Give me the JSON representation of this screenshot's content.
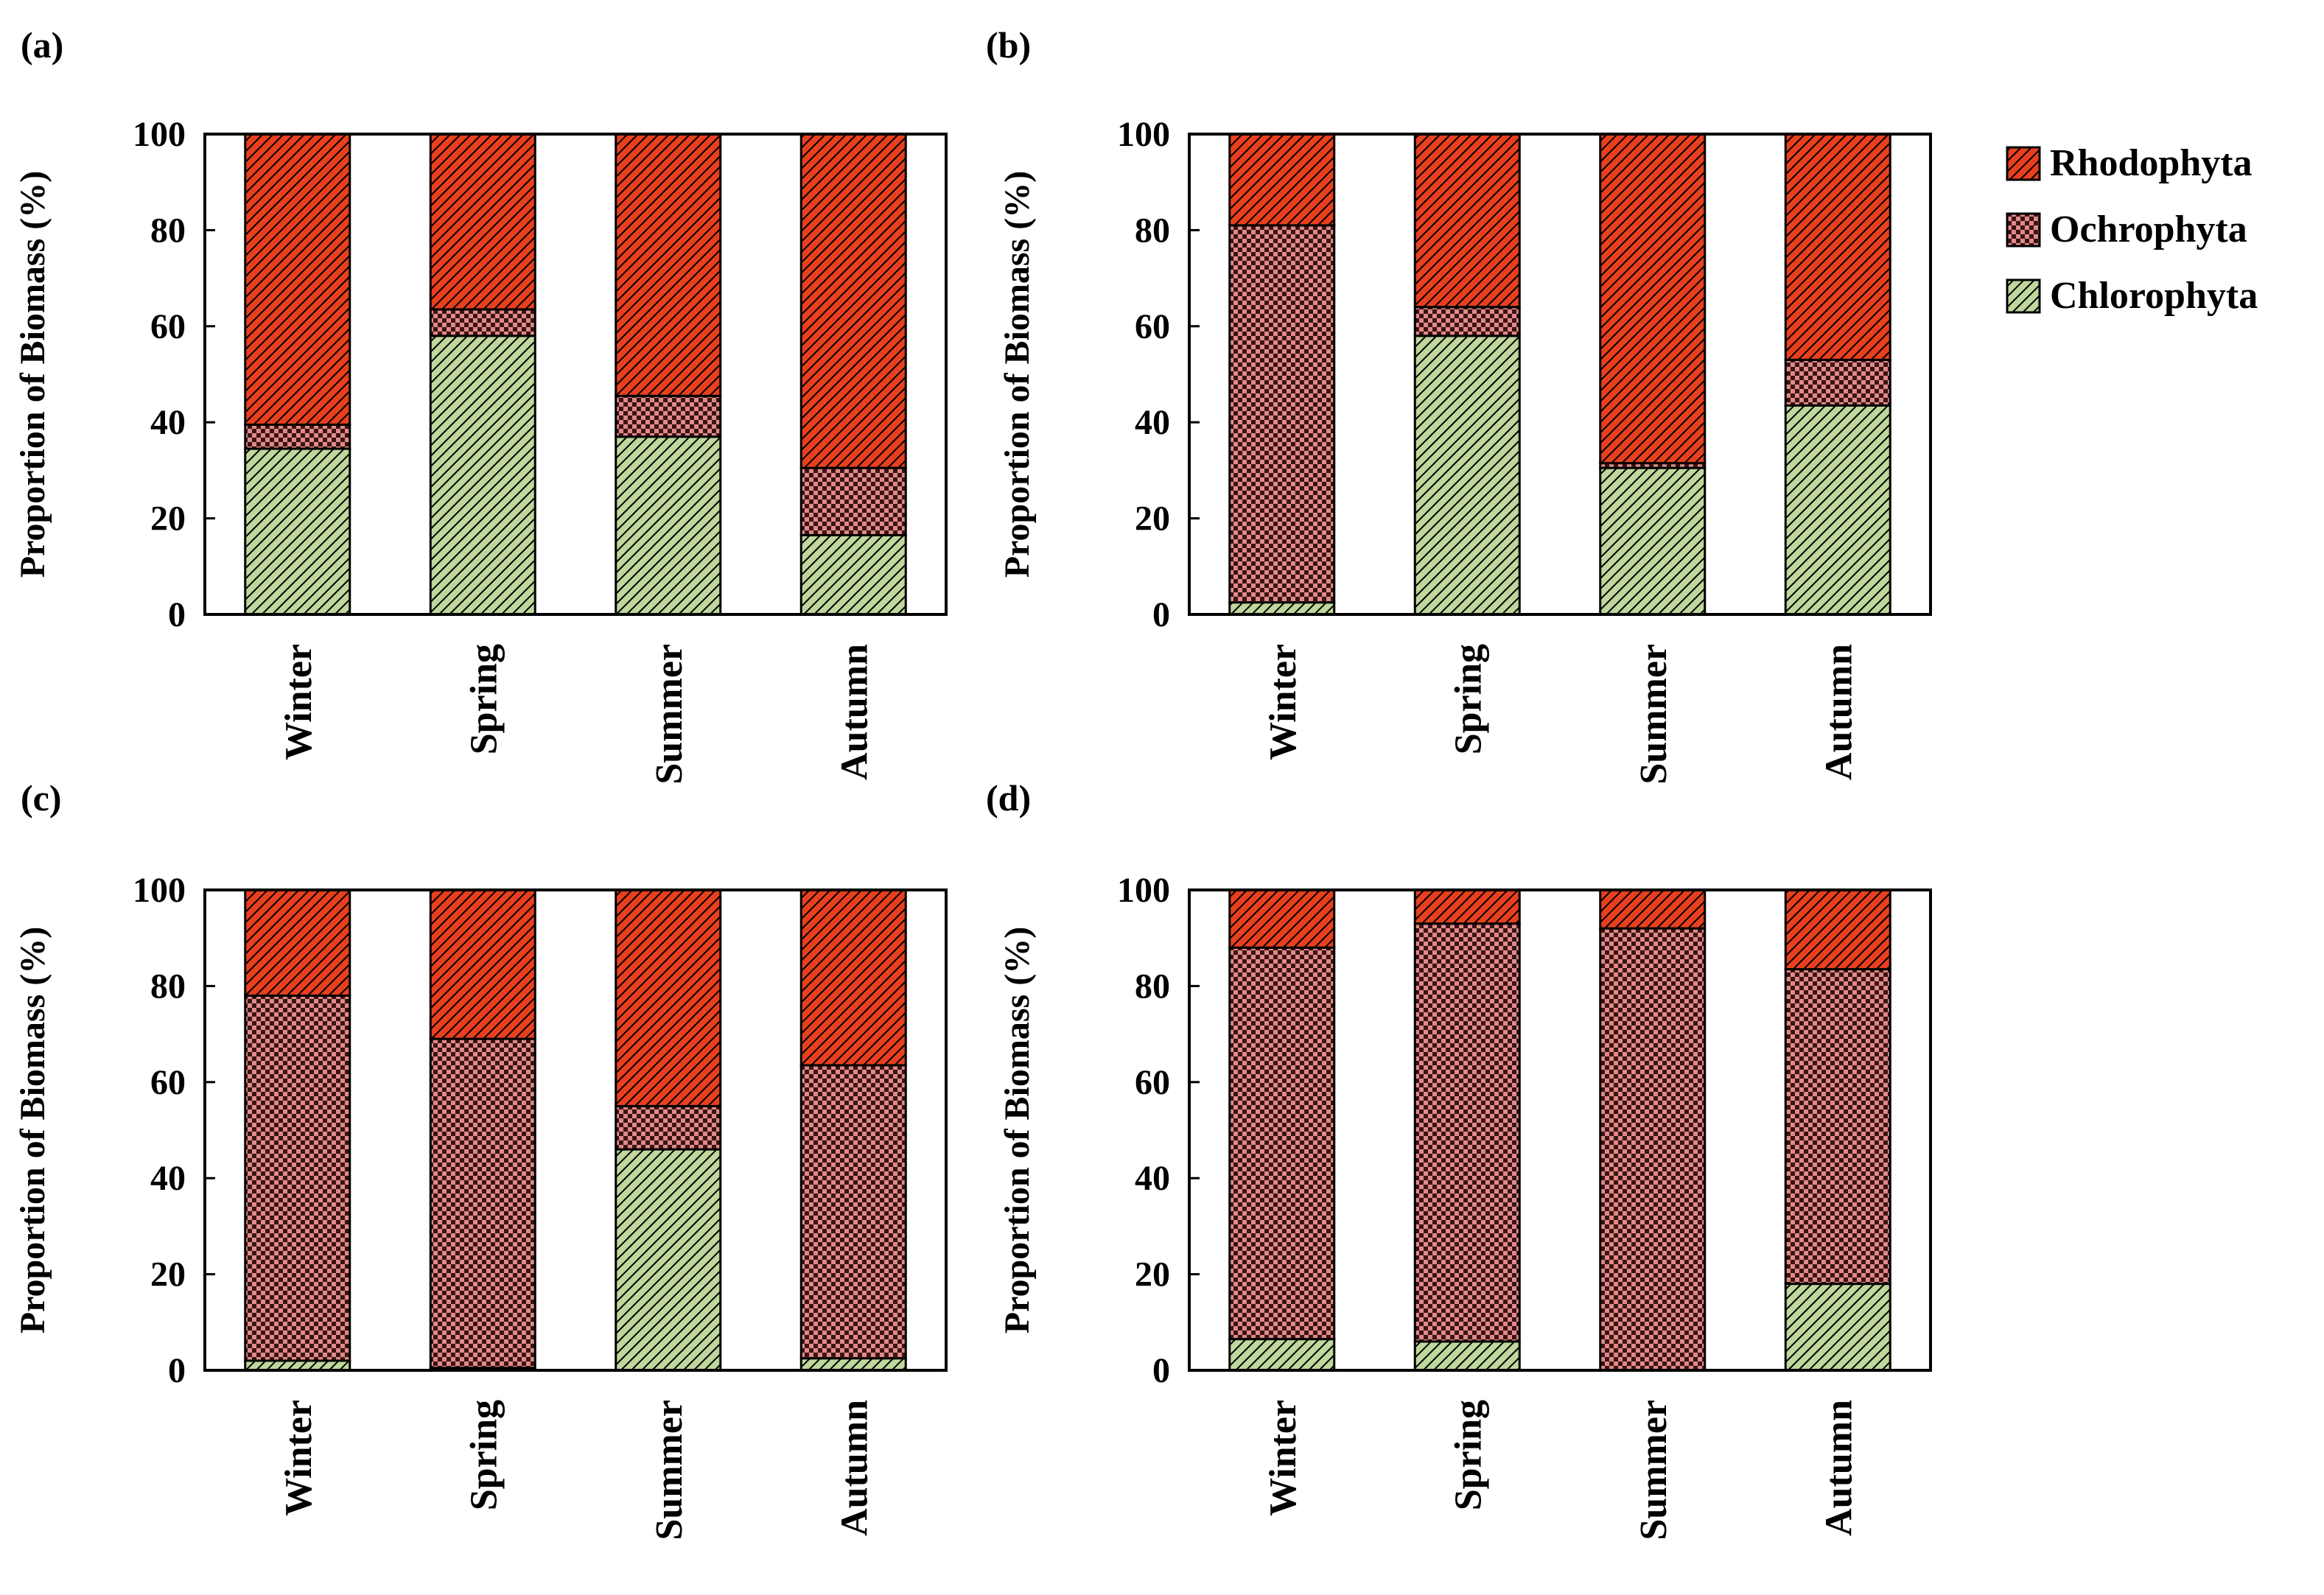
{
  "colors": {
    "Rhodophyta": "#e8401e",
    "Ochrophyta": "#e08a88",
    "Chlorophyta": "#bfd79c",
    "ink": "#000000"
  },
  "legend": {
    "position": "top-right",
    "entries": [
      "Rhodophyta",
      "Ochrophyta",
      "Chlorophyta"
    ]
  },
  "chart_data": [
    {
      "panel": "(a)",
      "type": "bar",
      "stacked": true,
      "categories": [
        "Winter",
        "Spring",
        "Summer",
        "Autumn"
      ],
      "ylabel": "Proportion of Biomass (%)",
      "ylim": [
        0,
        100
      ],
      "yticks": [
        0,
        20,
        40,
        60,
        80,
        100
      ],
      "series": [
        {
          "name": "Chlorophyta",
          "values": [
            34.5,
            58.0,
            37.0,
            16.5
          ]
        },
        {
          "name": "Ochrophyta",
          "values": [
            5.0,
            5.5,
            8.5,
            14.0
          ]
        },
        {
          "name": "Rhodophyta",
          "values": [
            60.5,
            36.5,
            54.5,
            69.5
          ]
        }
      ]
    },
    {
      "panel": "(b)",
      "type": "bar",
      "stacked": true,
      "categories": [
        "Winter",
        "Spring",
        "Summer",
        "Autumn"
      ],
      "ylabel": "Proportion of Biomass (%)",
      "ylim": [
        0,
        100
      ],
      "yticks": [
        0,
        20,
        40,
        60,
        80,
        100
      ],
      "series": [
        {
          "name": "Chlorophyta",
          "values": [
            2.5,
            58.0,
            30.5,
            43.5
          ]
        },
        {
          "name": "Ochrophyta",
          "values": [
            78.5,
            6.0,
            1.0,
            9.5
          ]
        },
        {
          "name": "Rhodophyta",
          "values": [
            19.0,
            36.0,
            68.5,
            47.0
          ]
        }
      ]
    },
    {
      "panel": "(c)",
      "type": "bar",
      "stacked": true,
      "categories": [
        "Winter",
        "Spring",
        "Summer",
        "Autumn"
      ],
      "ylabel": "Proportion of Biomass (%)",
      "ylim": [
        0,
        100
      ],
      "yticks": [
        0,
        20,
        40,
        60,
        80,
        100
      ],
      "series": [
        {
          "name": "Chlorophyta",
          "values": [
            2.0,
            0.5,
            46.0,
            2.5
          ]
        },
        {
          "name": "Ochrophyta",
          "values": [
            76.0,
            68.5,
            9.0,
            61.0
          ]
        },
        {
          "name": "Rhodophyta",
          "values": [
            22.0,
            31.0,
            45.0,
            36.5
          ]
        }
      ]
    },
    {
      "panel": "(d)",
      "type": "bar",
      "stacked": true,
      "categories": [
        "Winter",
        "Spring",
        "Summer",
        "Autumn"
      ],
      "ylabel": "Proportion of Biomass (%)",
      "ylim": [
        0,
        100
      ],
      "yticks": [
        0,
        20,
        40,
        60,
        80,
        100
      ],
      "series": [
        {
          "name": "Chlorophyta",
          "values": [
            6.5,
            6.0,
            0.0,
            18.0
          ]
        },
        {
          "name": "Ochrophyta",
          "values": [
            81.5,
            87.0,
            92.0,
            65.5
          ]
        },
        {
          "name": "Rhodophyta",
          "values": [
            12.0,
            7.0,
            8.0,
            16.5
          ]
        }
      ]
    }
  ]
}
